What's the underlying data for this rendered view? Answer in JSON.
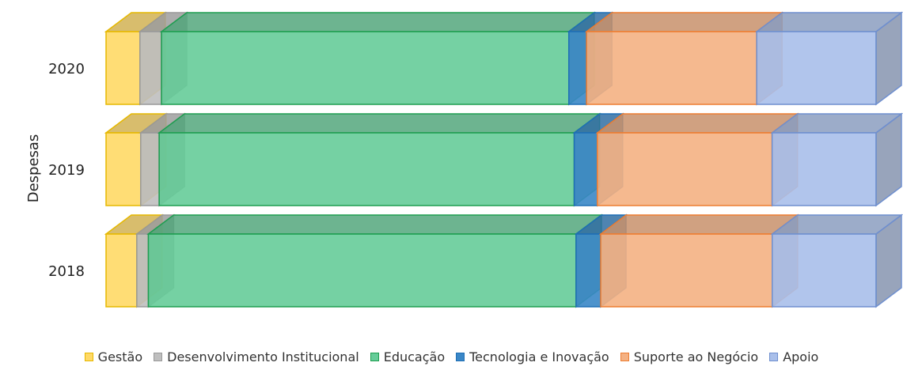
{
  "chart_data": {
    "type": "bar",
    "orientation": "horizontal",
    "stacked": "100%",
    "style": "3d",
    "ylabel": "Despesas",
    "categories": [
      "2020",
      "2019",
      "2018"
    ],
    "series": [
      {
        "name": "Gestão",
        "color": "#FFD966",
        "edge": "#E6B800",
        "values": [
          4.4,
          4.5,
          4.0
        ]
      },
      {
        "name": "Desenvolvimento Institucional",
        "color": "#BFBFBF",
        "edge": "#999999",
        "values": [
          2.8,
          2.4,
          1.5
        ]
      },
      {
        "name": "Educação",
        "color": "#66CC99",
        "edge": "#1E9E50",
        "values": [
          52.9,
          53.9,
          55.6
        ]
      },
      {
        "name": "Tecnologia e Inovação",
        "color": "#3A87C7",
        "edge": "#1F6FB5",
        "values": [
          2.3,
          3.0,
          3.2
        ]
      },
      {
        "name": "Suporte ao Negócio",
        "color": "#F4B183",
        "edge": "#ED7D31",
        "values": [
          22.1,
          22.7,
          22.3
        ]
      },
      {
        "name": "Apoio",
        "color": "#A9BFEA",
        "edge": "#6F8FCF",
        "values": [
          15.5,
          13.5,
          13.5
        ]
      }
    ],
    "legend_position": "bottom",
    "grid": false
  }
}
